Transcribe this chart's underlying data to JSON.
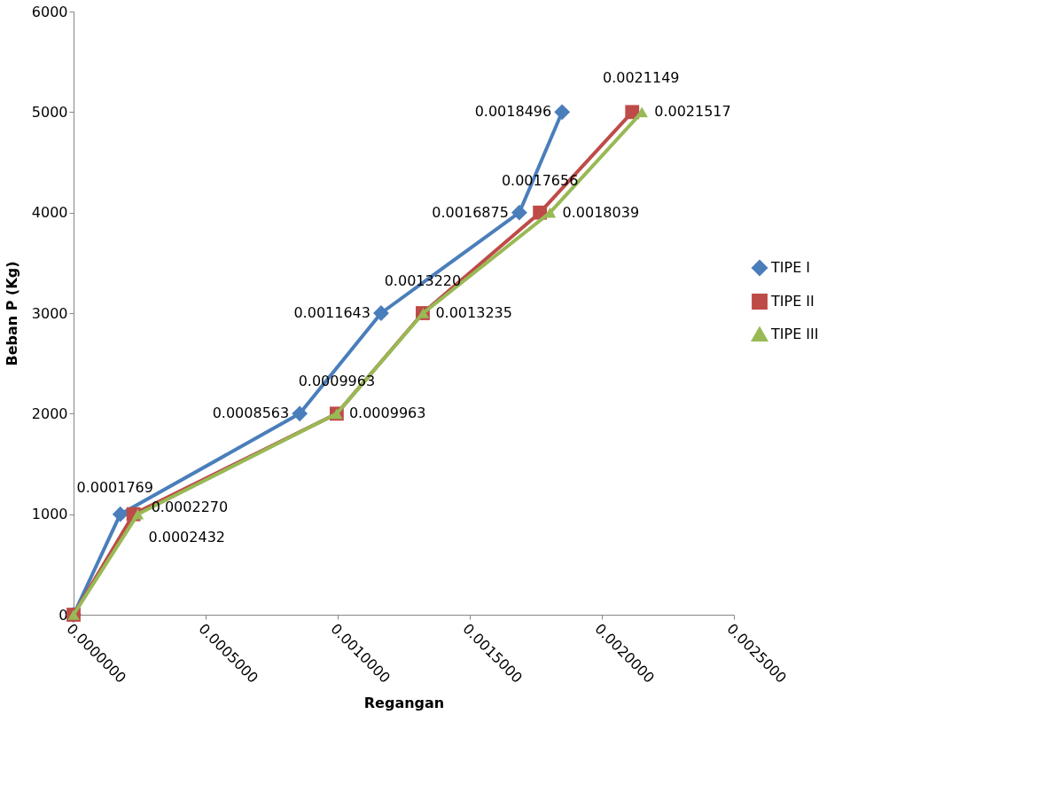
{
  "chart_data": {
    "type": "line",
    "xlabel": "Regangan",
    "ylabel": "Beban P (Kg)",
    "xlim": [
      0,
      0.0025
    ],
    "xticks": [
      {
        "value": 0,
        "label": "0.0000000"
      },
      {
        "value": 0.0005,
        "label": "0.0005000"
      },
      {
        "value": 0.001,
        "label": "0.0010000"
      },
      {
        "value": 0.0015,
        "label": "0.0015000"
      },
      {
        "value": 0.002,
        "label": "0.0020000"
      },
      {
        "value": 0.0025,
        "label": "0.0025000"
      }
    ],
    "ylim": [
      0,
      6000
    ],
    "yticks": [
      0,
      1000,
      2000,
      3000,
      4000,
      5000,
      6000
    ],
    "grid": false,
    "legend": "right",
    "line_style": "solid",
    "series": [
      {
        "name": "TIPE I",
        "color": "#4a7ebb",
        "marker": "diamond",
        "x": [
          0,
          0.0001769,
          0.0008563,
          0.0011643,
          0.0016875,
          0.0018496
        ],
        "values": [
          0,
          1000,
          2000,
          3000,
          4000,
          5000
        ]
      },
      {
        "name": "TIPE II",
        "color": "#be4b48",
        "marker": "square",
        "x": [
          0,
          0.000227,
          0.0009963,
          0.001322,
          0.0017656,
          0.0021149
        ],
        "values": [
          0,
          1000,
          2000,
          3000,
          4000,
          5000
        ]
      },
      {
        "name": "TIPE III",
        "color": "#98b954",
        "marker": "triangle",
        "x": [
          0,
          0.0002432,
          0.0009963,
          0.0013235,
          0.0018039,
          0.0021517
        ],
        "values": [
          0,
          1000,
          2000,
          3000,
          4000,
          5000
        ]
      }
    ],
    "annotations": [
      {
        "text": "0.0001769",
        "x": 0.0001769,
        "y": 1000
      },
      {
        "text": "0.0008563",
        "x": 0.0008563,
        "y": 2000
      },
      {
        "text": "0.0011643",
        "x": 0.0011643,
        "y": 3000
      },
      {
        "text": "0.0016875",
        "x": 0.0016875,
        "y": 4000
      },
      {
        "text": "0.0018496",
        "x": 0.0018496,
        "y": 5000
      },
      {
        "text": "0.0002270",
        "x": 0.000227,
        "y": 1000
      },
      {
        "text": "0.0009963",
        "x": 0.0009963,
        "y": 2000
      },
      {
        "text": "0.0013220",
        "x": 0.001322,
        "y": 3000
      },
      {
        "text": "0.0017656",
        "x": 0.0017656,
        "y": 4000
      },
      {
        "text": "0.0021149",
        "x": 0.0021149,
        "y": 5000
      },
      {
        "text": "0.0002432",
        "x": 0.0002432,
        "y": 1000
      },
      {
        "text": "0.0009963",
        "x": 0.0009963,
        "y": 2000
      },
      {
        "text": "0.0013235",
        "x": 0.0013235,
        "y": 3000
      },
      {
        "text": "0.0018039",
        "x": 0.0018039,
        "y": 4000
      },
      {
        "text": "0.0021517",
        "x": 0.0021517,
        "y": 5000
      }
    ]
  }
}
